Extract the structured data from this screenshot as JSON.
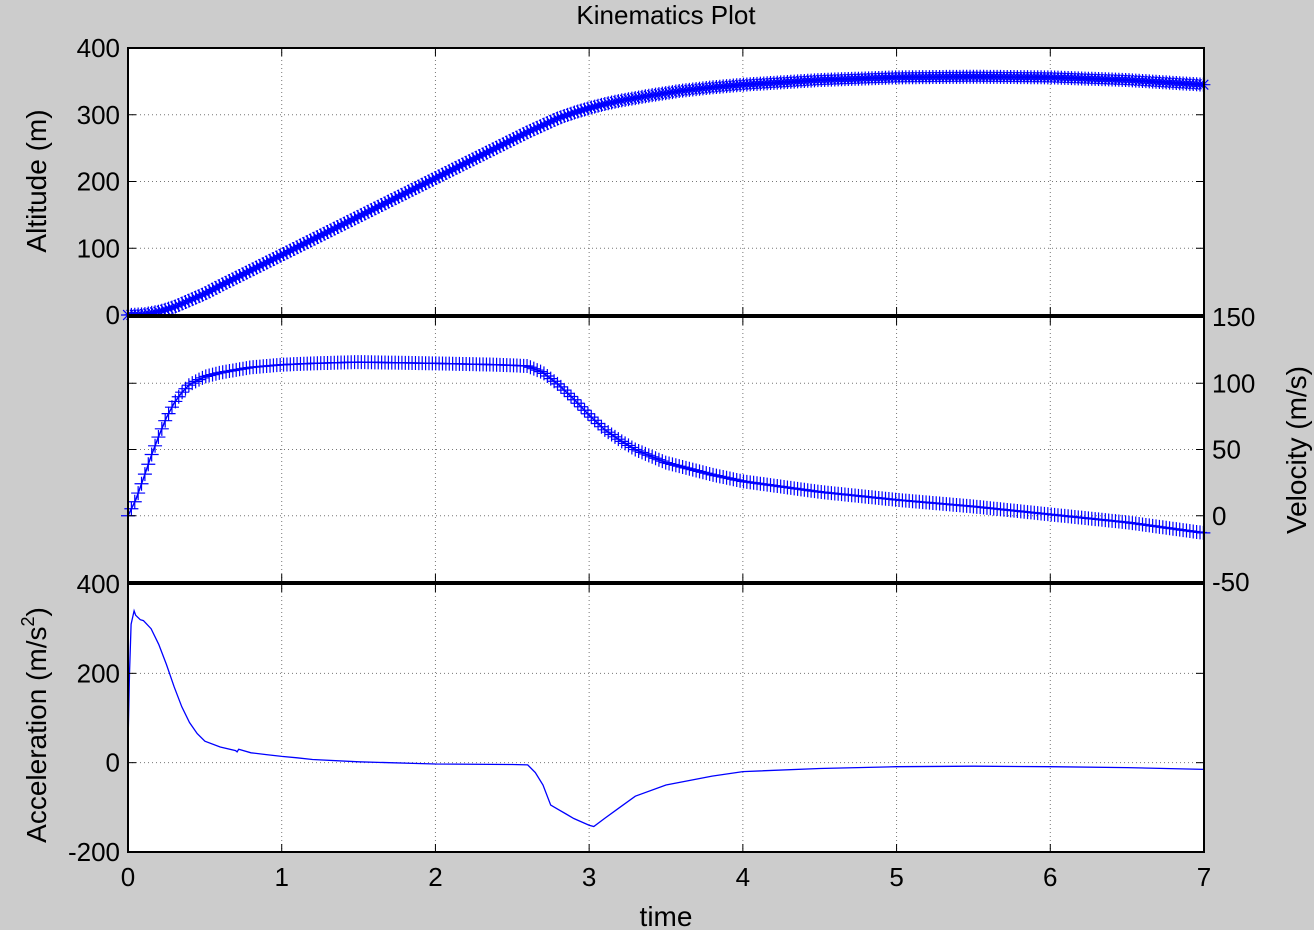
{
  "figure": {
    "title": "Kinematics Plot",
    "background": "#cccccc",
    "axes_background": "#ffffff",
    "series_color": "#0000ff",
    "grid": "dotted"
  },
  "chart_data": [
    {
      "type": "line",
      "marker": "asterisk",
      "title": "Kinematics Plot",
      "xlabel": "",
      "ylabel": "Altitude (m)",
      "y_axis_side": "left",
      "xlim": [
        0,
        7
      ],
      "ylim": [
        0,
        400
      ],
      "yticks": [
        0,
        100,
        200,
        300,
        400
      ],
      "ytick_labels": [
        "0",
        "100",
        "200",
        "300",
        "400"
      ],
      "grid": true,
      "series": [
        {
          "x": [
            0,
            0.1,
            0.2,
            0.3,
            0.4,
            0.5,
            0.6,
            0.8,
            1.0,
            1.2,
            1.4,
            1.6,
            1.8,
            2.0,
            2.2,
            2.4,
            2.6,
            2.8,
            2.9,
            3.0,
            3.1,
            3.2,
            3.4,
            3.6,
            3.8,
            4.0,
            4.5,
            5.0,
            5.5,
            6.0,
            6.5,
            7.0
          ],
          "y": [
            0,
            1,
            5,
            12,
            22,
            32,
            44,
            67,
            90,
            113,
            136,
            159,
            182,
            205,
            228,
            251,
            274,
            295,
            303,
            310,
            316,
            321,
            329,
            336,
            341,
            345,
            352,
            356,
            357,
            356,
            352,
            345
          ]
        }
      ]
    },
    {
      "type": "line",
      "marker": "plus",
      "xlabel": "",
      "ylabel": "Velocity (m/s)",
      "y_axis_side": "right",
      "xlim": [
        0,
        7
      ],
      "ylim": [
        -50,
        150
      ],
      "yticks": [
        -50,
        0,
        50,
        100,
        150
      ],
      "ytick_labels": [
        "-50",
        "0",
        "50",
        "100",
        "150"
      ],
      "grid": true,
      "series": [
        {
          "x": [
            0,
            0.05,
            0.1,
            0.15,
            0.2,
            0.25,
            0.3,
            0.35,
            0.4,
            0.45,
            0.5,
            0.6,
            0.7,
            0.8,
            1.0,
            1.2,
            1.5,
            2.0,
            2.4,
            2.6,
            2.7,
            2.8,
            2.9,
            3.0,
            3.1,
            3.2,
            3.3,
            3.5,
            3.8,
            4.0,
            4.5,
            5.0,
            5.5,
            6.0,
            6.5,
            7.0
          ],
          "y": [
            0,
            12,
            28,
            45,
            60,
            74,
            85,
            93,
            99,
            102,
            105,
            108,
            110,
            112,
            114,
            115,
            116,
            115,
            114,
            113,
            108,
            99,
            88,
            76,
            65,
            57,
            50,
            40,
            31,
            26,
            18,
            12,
            7,
            1,
            -5,
            -13
          ]
        }
      ]
    },
    {
      "type": "line",
      "marker": "none",
      "xlabel": "time",
      "ylabel": "Acceleration (m/s2)",
      "ylabel_base": "Acceleration (m/s",
      "ylabel_exponent": "2",
      "ylabel_close": ")",
      "y_axis_side": "left",
      "xlim": [
        0,
        7
      ],
      "ylim": [
        -200,
        400
      ],
      "xticks": [
        0,
        1,
        2,
        3,
        4,
        5,
        6,
        7
      ],
      "xtick_labels": [
        "0",
        "1",
        "2",
        "3",
        "4",
        "5",
        "6",
        "7"
      ],
      "yticks": [
        -200,
        0,
        200,
        400
      ],
      "ytick_labels": [
        "-200",
        "0",
        "200",
        "400"
      ],
      "grid": true,
      "series": [
        {
          "x": [
            0,
            0.01,
            0.02,
            0.03,
            0.04,
            0.05,
            0.08,
            0.1,
            0.15,
            0.2,
            0.25,
            0.3,
            0.35,
            0.4,
            0.45,
            0.5,
            0.6,
            0.7,
            0.71,
            0.72,
            0.8,
            0.9,
            1.0,
            1.1,
            1.2,
            1.5,
            2.0,
            2.5,
            2.6,
            2.65,
            2.7,
            2.75,
            2.8,
            2.85,
            2.9,
            3.0,
            3.03,
            3.1,
            3.2,
            3.3,
            3.5,
            3.8,
            4.0,
            4.5,
            5.0,
            5.5,
            6.0,
            6.5,
            7.0
          ],
          "y": [
            40,
            200,
            310,
            325,
            340,
            330,
            320,
            318,
            300,
            265,
            220,
            170,
            125,
            90,
            65,
            48,
            35,
            27,
            24,
            30,
            22,
            18,
            14,
            11,
            7,
            2,
            -3,
            -4,
            -5,
            -22,
            -50,
            -95,
            -105,
            -115,
            -125,
            -140,
            -143,
            -125,
            -100,
            -75,
            -50,
            -30,
            -20,
            -13,
            -9,
            -8,
            -9,
            -11,
            -15
          ]
        }
      ]
    }
  ]
}
